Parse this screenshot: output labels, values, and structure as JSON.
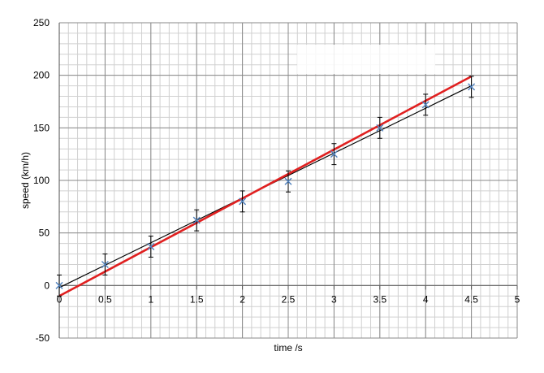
{
  "chart_data": {
    "type": "scatter",
    "title": "",
    "xlabel": "time /s",
    "ylabel": "speed (km/h)",
    "xlim": [
      0,
      5
    ],
    "ylim": [
      -50,
      250
    ],
    "xticks": [
      "0",
      "0.5",
      "1",
      "1.5",
      "2",
      "2.5",
      "3",
      "3.5",
      "4",
      "4.5",
      "5"
    ],
    "yticks": [
      "-50",
      "0",
      "50",
      "100",
      "150",
      "200",
      "250"
    ],
    "grid": true,
    "minor_grid": true,
    "legend": "none",
    "series": [
      {
        "marker": "x",
        "color": "#4f81bd",
        "x": [
          0,
          0.5,
          1,
          1.5,
          2,
          2.5,
          3,
          3.5,
          4,
          4.5
        ],
        "y": [
          0,
          20,
          37,
          62,
          80,
          99,
          125,
          150,
          172,
          189
        ],
        "error": 10
      }
    ],
    "fit_lines": [
      {
        "color": "#000000",
        "x": [
          0,
          4.5
        ],
        "y": [
          -2,
          190
        ]
      },
      {
        "color": "#e02020",
        "x": [
          0,
          4.5
        ],
        "y": [
          -10,
          199
        ]
      }
    ]
  }
}
